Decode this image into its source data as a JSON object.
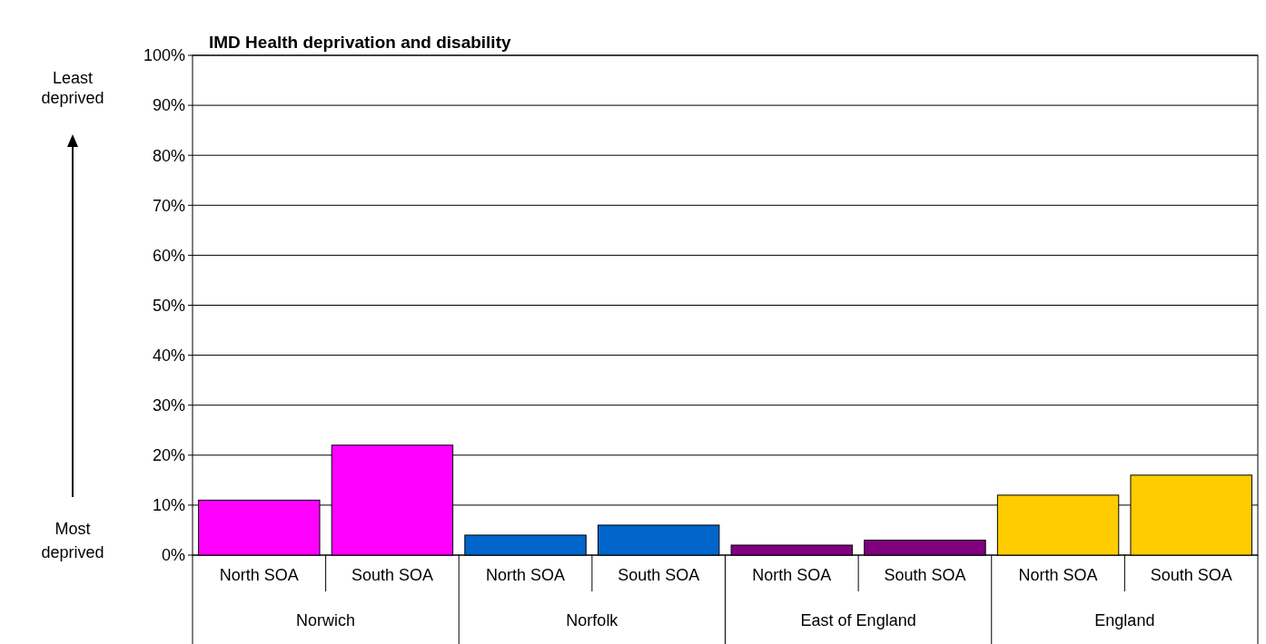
{
  "chart_data": {
    "type": "bar",
    "title": "IMD Health deprivation and disability",
    "categories": [
      "North SOA",
      "South SOA",
      "North SOA",
      "South SOA",
      "North SOA",
      "South SOA",
      "North SOA",
      "South SOA"
    ],
    "values": [
      11,
      22,
      4,
      6,
      2,
      3,
      12,
      16
    ],
    "colors": [
      "#ff00ff",
      "#ff00ff",
      "#0066cc",
      "#0066cc",
      "#800080",
      "#800080",
      "#ffcc00",
      "#ffcc00"
    ],
    "ylim": [
      0,
      100
    ],
    "yticks": [
      {
        "value": 0,
        "label": "0%"
      },
      {
        "value": 10,
        "label": "10%"
      },
      {
        "value": 20,
        "label": "20%"
      },
      {
        "value": 30,
        "label": "30%"
      },
      {
        "value": 40,
        "label": "40%"
      },
      {
        "value": 50,
        "label": "50%"
      },
      {
        "value": 60,
        "label": "60%"
      },
      {
        "value": 70,
        "label": "70%"
      },
      {
        "value": 80,
        "label": "80%"
      },
      {
        "value": 90,
        "label": "90%"
      },
      {
        "value": 100,
        "label": "100%"
      }
    ],
    "grid": "y",
    "annotations": [
      "Norwich",
      "Norfolk",
      "East of England",
      "England",
      "Least deprived",
      "Most deprived"
    ]
  }
}
